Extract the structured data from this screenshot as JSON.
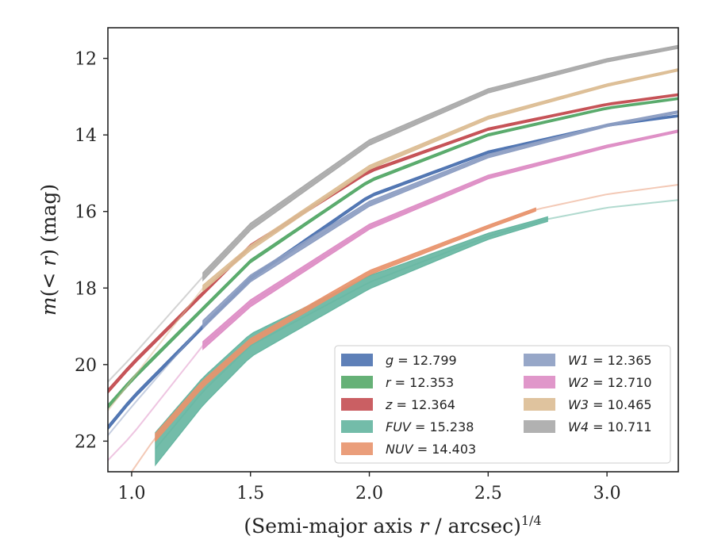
{
  "chart_data": {
    "type": "line",
    "xlabel": "(Semi-major axis r / arcsec)^1/4",
    "ylabel": "m(< r) (mag)",
    "xlim": [
      0.9,
      3.3
    ],
    "ylim": [
      22.8,
      11.2
    ],
    "y_inverted": true,
    "grid": false,
    "legend_position": "lower-right",
    "x_ticks": [
      1.0,
      1.5,
      2.0,
      2.5,
      3.0
    ],
    "x_tick_labels": [
      "1.0",
      "1.5",
      "2.0",
      "2.5",
      "3.0"
    ],
    "y_ticks": [
      12,
      14,
      16,
      18,
      20,
      22
    ],
    "y_tick_labels": [
      "12",
      "14",
      "16",
      "18",
      "20",
      "22"
    ],
    "legend_columns": 2,
    "series": [
      {
        "name": "g",
        "legend_label": "g = 12.799",
        "color": "#4c72b0",
        "x_start": 0.9,
        "x_solid_start": 0.9,
        "x_solid_end": 3.3,
        "x_end": 3.3,
        "band_start": 0.1,
        "band_end": 0.05,
        "points": [
          [
            0.9,
            21.65
          ],
          [
            1.0,
            20.9
          ],
          [
            1.5,
            17.75
          ],
          [
            2.0,
            15.6
          ],
          [
            2.5,
            14.45
          ],
          [
            3.0,
            13.75
          ],
          [
            3.3,
            13.5
          ]
        ]
      },
      {
        "name": "r",
        "legend_label": "r = 12.353",
        "color": "#55a868",
        "x_start": 0.9,
        "x_solid_start": 0.9,
        "x_solid_end": 3.3,
        "x_end": 3.3,
        "band_start": 0.1,
        "band_end": 0.05,
        "points": [
          [
            0.9,
            21.1
          ],
          [
            1.0,
            20.4
          ],
          [
            1.5,
            17.3
          ],
          [
            2.0,
            15.2
          ],
          [
            2.5,
            14.0
          ],
          [
            3.0,
            13.3
          ],
          [
            3.3,
            13.05
          ]
        ]
      },
      {
        "name": "z",
        "legend_label": "z = 12.364",
        "color": "#c44e52",
        "x_start": 0.9,
        "x_solid_start": 0.9,
        "x_solid_end": 3.3,
        "x_end": 3.3,
        "band_start": 0.1,
        "band_end": 0.05,
        "points": [
          [
            0.9,
            20.7
          ],
          [
            1.0,
            20.0
          ],
          [
            1.5,
            16.9
          ],
          [
            2.0,
            14.95
          ],
          [
            2.5,
            13.85
          ],
          [
            3.0,
            13.2
          ],
          [
            3.3,
            12.95
          ]
        ]
      },
      {
        "name": "FUV",
        "legend_label": "FUV = 15.238",
        "color": "#64b5a0",
        "x_start": 1.1,
        "x_solid_start": 1.1,
        "x_solid_end": 2.75,
        "x_end": 3.3,
        "band_start": 0.85,
        "band_end": 0.12,
        "points": [
          [
            1.1,
            22.2
          ],
          [
            1.3,
            20.7
          ],
          [
            1.5,
            19.5
          ],
          [
            2.0,
            17.85
          ],
          [
            2.5,
            16.65
          ],
          [
            2.75,
            16.2
          ],
          [
            3.0,
            15.9
          ],
          [
            3.3,
            15.7
          ]
        ]
      },
      {
        "name": "NUV",
        "legend_label": "NUV = 14.403",
        "color": "#e8936d",
        "x_start": 1.0,
        "x_solid_start": 1.1,
        "x_solid_end": 2.7,
        "x_end": 3.3,
        "band_start": 0.2,
        "band_end": 0.08,
        "points": [
          [
            1.0,
            22.8
          ],
          [
            1.1,
            21.9
          ],
          [
            1.3,
            20.5
          ],
          [
            1.5,
            19.4
          ],
          [
            2.0,
            17.6
          ],
          [
            2.5,
            16.4
          ],
          [
            2.7,
            15.95
          ],
          [
            3.0,
            15.55
          ],
          [
            3.3,
            15.3
          ]
        ]
      },
      {
        "name": "W1",
        "legend_label": "W1 = 12.365",
        "color": "#8c9dc2",
        "x_start": 0.9,
        "x_solid_start": 1.3,
        "x_solid_end": 3.3,
        "x_end": 3.3,
        "band_start": 0.2,
        "band_end": 0.06,
        "points": [
          [
            0.9,
            21.85
          ],
          [
            1.0,
            21.1
          ],
          [
            1.3,
            18.95
          ],
          [
            1.5,
            17.75
          ],
          [
            2.0,
            15.8
          ],
          [
            2.5,
            14.55
          ],
          [
            3.0,
            13.75
          ],
          [
            3.3,
            13.4
          ]
        ]
      },
      {
        "name": "W2",
        "legend_label": "W2 = 12.710",
        "color": "#dd8cc4",
        "x_start": 0.9,
        "x_solid_start": 1.3,
        "x_solid_end": 3.3,
        "x_end": 3.3,
        "band_start": 0.2,
        "band_end": 0.06,
        "points": [
          [
            0.9,
            22.5
          ],
          [
            1.0,
            21.85
          ],
          [
            1.3,
            19.5
          ],
          [
            1.5,
            18.4
          ],
          [
            2.0,
            16.4
          ],
          [
            2.5,
            15.1
          ],
          [
            3.0,
            14.3
          ],
          [
            3.3,
            13.9
          ]
        ]
      },
      {
        "name": "W3",
        "legend_label": "W3 = 10.465",
        "color": "#dcbd94",
        "x_start": 0.9,
        "x_solid_start": 1.3,
        "x_solid_end": 3.3,
        "x_end": 3.3,
        "band_start": 0.15,
        "band_end": 0.06,
        "points": [
          [
            0.9,
            21.2
          ],
          [
            1.0,
            20.4
          ],
          [
            1.3,
            18.0
          ],
          [
            1.5,
            16.95
          ],
          [
            2.0,
            14.85
          ],
          [
            2.5,
            13.55
          ],
          [
            3.0,
            12.7
          ],
          [
            3.3,
            12.3
          ]
        ]
      },
      {
        "name": "W4",
        "legend_label": "W4 = 10.711",
        "color": "#a8a8a8",
        "x_start": 0.9,
        "x_solid_start": 1.3,
        "x_solid_end": 3.3,
        "x_end": 3.3,
        "band_start": 0.2,
        "band_end": 0.08,
        "points": [
          [
            0.9,
            20.45
          ],
          [
            1.0,
            19.8
          ],
          [
            1.3,
            17.7
          ],
          [
            1.5,
            16.4
          ],
          [
            2.0,
            14.2
          ],
          [
            2.5,
            12.85
          ],
          [
            3.0,
            12.05
          ],
          [
            3.3,
            11.7
          ]
        ]
      }
    ]
  }
}
